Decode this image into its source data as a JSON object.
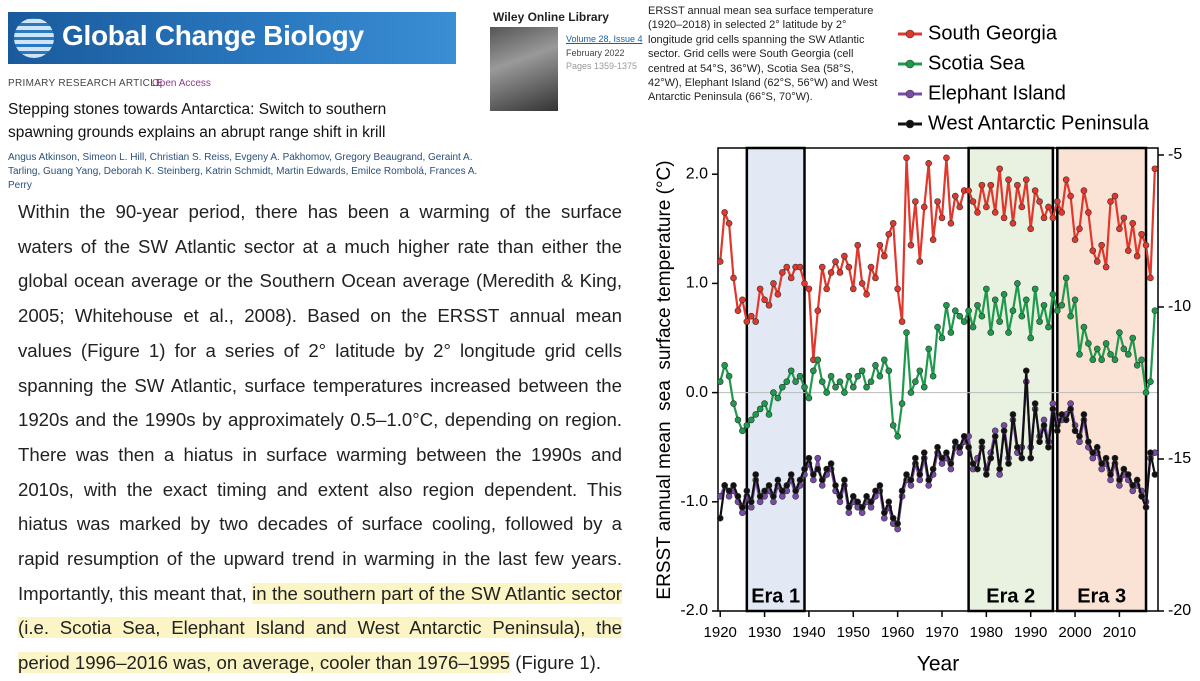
{
  "header": {
    "journal": "Global Change Biology",
    "library": "Wiley Online Library",
    "volume": "Volume 28, Issue 4",
    "date": "February 2022",
    "pages": "Pages 1359-1375"
  },
  "article": {
    "type": "PRIMARY RESEARCH ARTICLE",
    "access": "Open Access",
    "title": "Stepping stones towards Antarctica: Switch to southern spawning grounds explains an abrupt range shift in krill",
    "authors": "Angus Atkinson, Simeon L. Hill, Christian S. Reiss, Evgeny A. Pakhomov, Gregory Beaugrand, Geraint A. Tarling, Guang Yang, Deborah K. Steinberg, Katrin Schmidt, Martin Edwards, Emilce Rombolá, Frances A. Perry",
    "body": [
      "Within the 90-year period, there has been a warming of the surface waters of the SW Atlantic sector at a much higher rate than either the global ocean average or the Southern Ocean average (Meredith & King, 2005; Whitehouse et al., 2008). Based on the ERSST annual mean values (Figure 1) for a series of 2° latitude by 2° longitude grid cells spanning the SW Atlantic, surface temperatures increased between the 1920s and the 1990s by approximately 0.5–1.0°C, depending on region. There was then a hiatus in surface warming between the 1990s and 2010s, with the exact timing and extent also region dependent. This hiatus was marked by two decades of surface cooling, followed by a rapid resumption of the upward trend in warming in the last few years. Importantly, this meant that, ",
      "in the southern part of the SW Atlantic sector (i.e. Scotia Sea, Elephant Island and West Antarctic Peninsula), the period 1996–2016 was, on average, cooler than 1976–1995",
      " (Figure 1)."
    ]
  },
  "caption": "ERSST annual mean sea surface temperature (1920–2018) in selected 2° latitude by 2° longitude grid cells spanning the SW Atlantic sector. Grid cells were South Georgia (cell centred at 54°S, 36°W), Scotia Sea (58°S, 42°W), Elephant Island (62°S, 56°W) and West Antarctic Peninsula (66°S, 70°W).",
  "chart_data": {
    "type": "line",
    "x_label": "Year",
    "y_label": "ERSST annual mean  sea  surface temperature (°C)",
    "x": [
      1920,
      1921,
      1922,
      1923,
      1924,
      1925,
      1926,
      1927,
      1928,
      1929,
      1930,
      1931,
      1932,
      1933,
      1934,
      1935,
      1936,
      1937,
      1938,
      1939,
      1940,
      1941,
      1942,
      1943,
      1944,
      1945,
      1946,
      1947,
      1948,
      1949,
      1950,
      1951,
      1952,
      1953,
      1954,
      1955,
      1956,
      1957,
      1958,
      1959,
      1960,
      1961,
      1962,
      1963,
      1964,
      1965,
      1966,
      1967,
      1968,
      1969,
      1970,
      1971,
      1972,
      1973,
      1974,
      1975,
      1976,
      1977,
      1978,
      1979,
      1980,
      1981,
      1982,
      1983,
      1984,
      1985,
      1986,
      1987,
      1988,
      1989,
      1990,
      1991,
      1992,
      1993,
      1994,
      1995,
      1996,
      1997,
      1998,
      1999,
      2000,
      2001,
      2002,
      2003,
      2004,
      2005,
      2006,
      2007,
      2008,
      2009,
      2010,
      2011,
      2012,
      2013,
      2014,
      2015,
      2016,
      2017,
      2018
    ],
    "xlim": [
      1919.5,
      2018.7
    ],
    "xticks": [
      1920,
      1930,
      1940,
      1950,
      1960,
      1970,
      1980,
      1990,
      2000,
      2010
    ],
    "ylim": [
      -2.0,
      2.24
    ],
    "yticks": [
      {
        "value": 2,
        "label": "2.0"
      },
      {
        "value": 1,
        "label": "1.0"
      },
      {
        "value": 0,
        "label": "0.0"
      },
      {
        "value": -1,
        "label": "-1.0"
      },
      {
        "value": -2,
        "label": "-2.0"
      }
    ],
    "y2lim": [
      -20,
      -4.77
    ],
    "y2ticks": [
      -5,
      -10,
      -15,
      -20
    ],
    "hline": 0,
    "legend": "top-right",
    "eras": [
      {
        "label": "Era 1",
        "start": 1926,
        "end": 1939,
        "color": "#e2e9f4"
      },
      {
        "label": "Era 2",
        "start": 1976,
        "end": 1995,
        "color": "#e9f1e0"
      },
      {
        "label": "Era 3",
        "start": 1996,
        "end": 2016,
        "color": "#fae3d5"
      }
    ],
    "series": [
      {
        "name": "South Georgia",
        "color": "#e2372c",
        "values": [
          1.2,
          1.65,
          1.55,
          1.05,
          0.75,
          0.85,
          0.65,
          0.7,
          0.65,
          0.95,
          0.85,
          0.8,
          1.0,
          0.9,
          1.1,
          1.15,
          1.05,
          1.15,
          1.15,
          1.0,
          0.95,
          0.3,
          0.75,
          1.15,
          0.95,
          1.1,
          1.2,
          1.1,
          1.25,
          1.15,
          0.95,
          1.35,
          1.0,
          0.9,
          1.15,
          1.05,
          1.35,
          1.25,
          1.45,
          1.55,
          0.95,
          0.65,
          2.15,
          1.35,
          1.75,
          1.2,
          1.7,
          2.1,
          1.4,
          1.75,
          1.6,
          2.15,
          1.55,
          1.8,
          1.7,
          1.85,
          1.85,
          1.75,
          1.65,
          1.9,
          1.7,
          1.9,
          1.65,
          2.05,
          1.6,
          1.95,
          1.55,
          1.9,
          1.7,
          1.95,
          1.5,
          1.85,
          1.75,
          1.6,
          1.7,
          1.6,
          1.75,
          1.65,
          1.95,
          1.8,
          1.4,
          1.5,
          1.85,
          1.65,
          1.3,
          1.2,
          1.35,
          1.15,
          1.75,
          1.8,
          1.5,
          1.6,
          1.3,
          1.55,
          1.25,
          1.45,
          1.35,
          1.05,
          2.05
        ]
      },
      {
        "name": "Scotia Sea",
        "color": "#1e9a4c",
        "values": [
          0.1,
          0.25,
          0.15,
          -0.1,
          -0.25,
          -0.35,
          -0.3,
          -0.25,
          -0.2,
          -0.15,
          -0.1,
          -0.2,
          0.0,
          -0.05,
          0.05,
          0.1,
          0.2,
          0.1,
          0.15,
          0.05,
          -0.05,
          0.2,
          0.3,
          0.1,
          0.0,
          0.15,
          0.05,
          0.1,
          0.0,
          0.15,
          0.05,
          0.15,
          0.2,
          0.05,
          0.1,
          0.25,
          0.15,
          0.3,
          0.2,
          -0.3,
          -0.4,
          -0.1,
          0.55,
          0.0,
          0.1,
          0.2,
          0.05,
          0.4,
          0.15,
          0.6,
          0.5,
          0.8,
          0.55,
          0.75,
          0.7,
          0.65,
          0.75,
          0.6,
          0.8,
          0.7,
          0.95,
          0.55,
          0.85,
          0.65,
          0.9,
          0.55,
          0.75,
          1.0,
          0.7,
          0.85,
          0.5,
          0.95,
          0.65,
          0.8,
          0.6,
          0.9,
          0.75,
          0.8,
          1.05,
          0.7,
          0.85,
          0.35,
          0.6,
          0.45,
          0.3,
          0.4,
          0.3,
          0.45,
          0.35,
          0.3,
          0.55,
          0.4,
          0.35,
          0.5,
          0.25,
          0.3,
          0.0,
          0.1,
          0.75
        ]
      },
      {
        "name": "Elephant Island",
        "color": "#7a4aa8",
        "values": [
          -0.95,
          -0.85,
          -0.95,
          -0.9,
          -1.0,
          -1.1,
          -0.95,
          -1.05,
          -0.8,
          -1.0,
          -0.95,
          -0.9,
          -1.0,
          -0.85,
          -0.95,
          -0.9,
          -0.8,
          -0.95,
          -0.85,
          -0.75,
          -0.65,
          -0.8,
          -0.6,
          -0.85,
          -0.75,
          -0.7,
          -0.9,
          -1.0,
          -0.85,
          -1.1,
          -1.0,
          -1.05,
          -1.1,
          -1.0,
          -1.05,
          -0.95,
          -0.9,
          -1.15,
          -1.05,
          -1.2,
          -1.25,
          -0.95,
          -0.8,
          -0.85,
          -0.65,
          -0.8,
          -0.6,
          -0.85,
          -0.75,
          -0.55,
          -0.65,
          -0.6,
          -0.7,
          -0.5,
          -0.55,
          -0.45,
          -0.4,
          -0.7,
          -0.6,
          -0.5,
          -0.7,
          -0.55,
          -0.35,
          -0.75,
          -0.3,
          -0.6,
          -0.25,
          -0.55,
          -0.5,
          0.1,
          -0.5,
          -0.15,
          -0.4,
          -0.25,
          -0.45,
          -0.1,
          -0.3,
          -0.25,
          -0.2,
          -0.1,
          -0.3,
          -0.45,
          -0.25,
          -0.5,
          -0.6,
          -0.55,
          -0.7,
          -0.65,
          -0.8,
          -0.65,
          -0.85,
          -0.75,
          -0.8,
          -0.9,
          -0.85,
          -0.9,
          -1.0,
          -0.6,
          -0.55
        ]
      },
      {
        "name": "West Antarctic Peninsula",
        "color": "#111111",
        "values": [
          -1.15,
          -0.85,
          -0.9,
          -0.85,
          -0.95,
          -1.05,
          -0.9,
          -1.0,
          -0.75,
          -0.95,
          -0.9,
          -0.85,
          -0.95,
          -0.8,
          -0.9,
          -0.85,
          -0.75,
          -0.9,
          -0.8,
          -0.7,
          -0.6,
          -0.75,
          -0.7,
          -0.8,
          -0.7,
          -0.65,
          -0.85,
          -0.95,
          -0.8,
          -1.05,
          -0.95,
          -1.0,
          -1.05,
          -0.95,
          -1.0,
          -0.9,
          -0.85,
          -1.1,
          -1.0,
          -1.15,
          -1.2,
          -0.9,
          -0.75,
          -0.8,
          -0.6,
          -0.75,
          -0.55,
          -0.8,
          -0.7,
          -0.5,
          -0.6,
          -0.55,
          -0.65,
          -0.45,
          -0.5,
          -0.4,
          -0.5,
          -0.65,
          -0.7,
          -0.45,
          -0.75,
          -0.6,
          -0.4,
          -0.7,
          -0.35,
          -0.65,
          -0.2,
          -0.5,
          -0.6,
          0.2,
          -0.6,
          -0.1,
          -0.45,
          -0.3,
          -0.5,
          -0.15,
          -0.35,
          -0.2,
          -0.25,
          -0.15,
          -0.35,
          -0.4,
          -0.2,
          -0.45,
          -0.55,
          -0.5,
          -0.65,
          -0.6,
          -0.75,
          -0.6,
          -0.8,
          -0.7,
          -0.75,
          -0.85,
          -0.8,
          -0.95,
          -1.05,
          -0.55,
          -0.75
        ]
      }
    ]
  }
}
